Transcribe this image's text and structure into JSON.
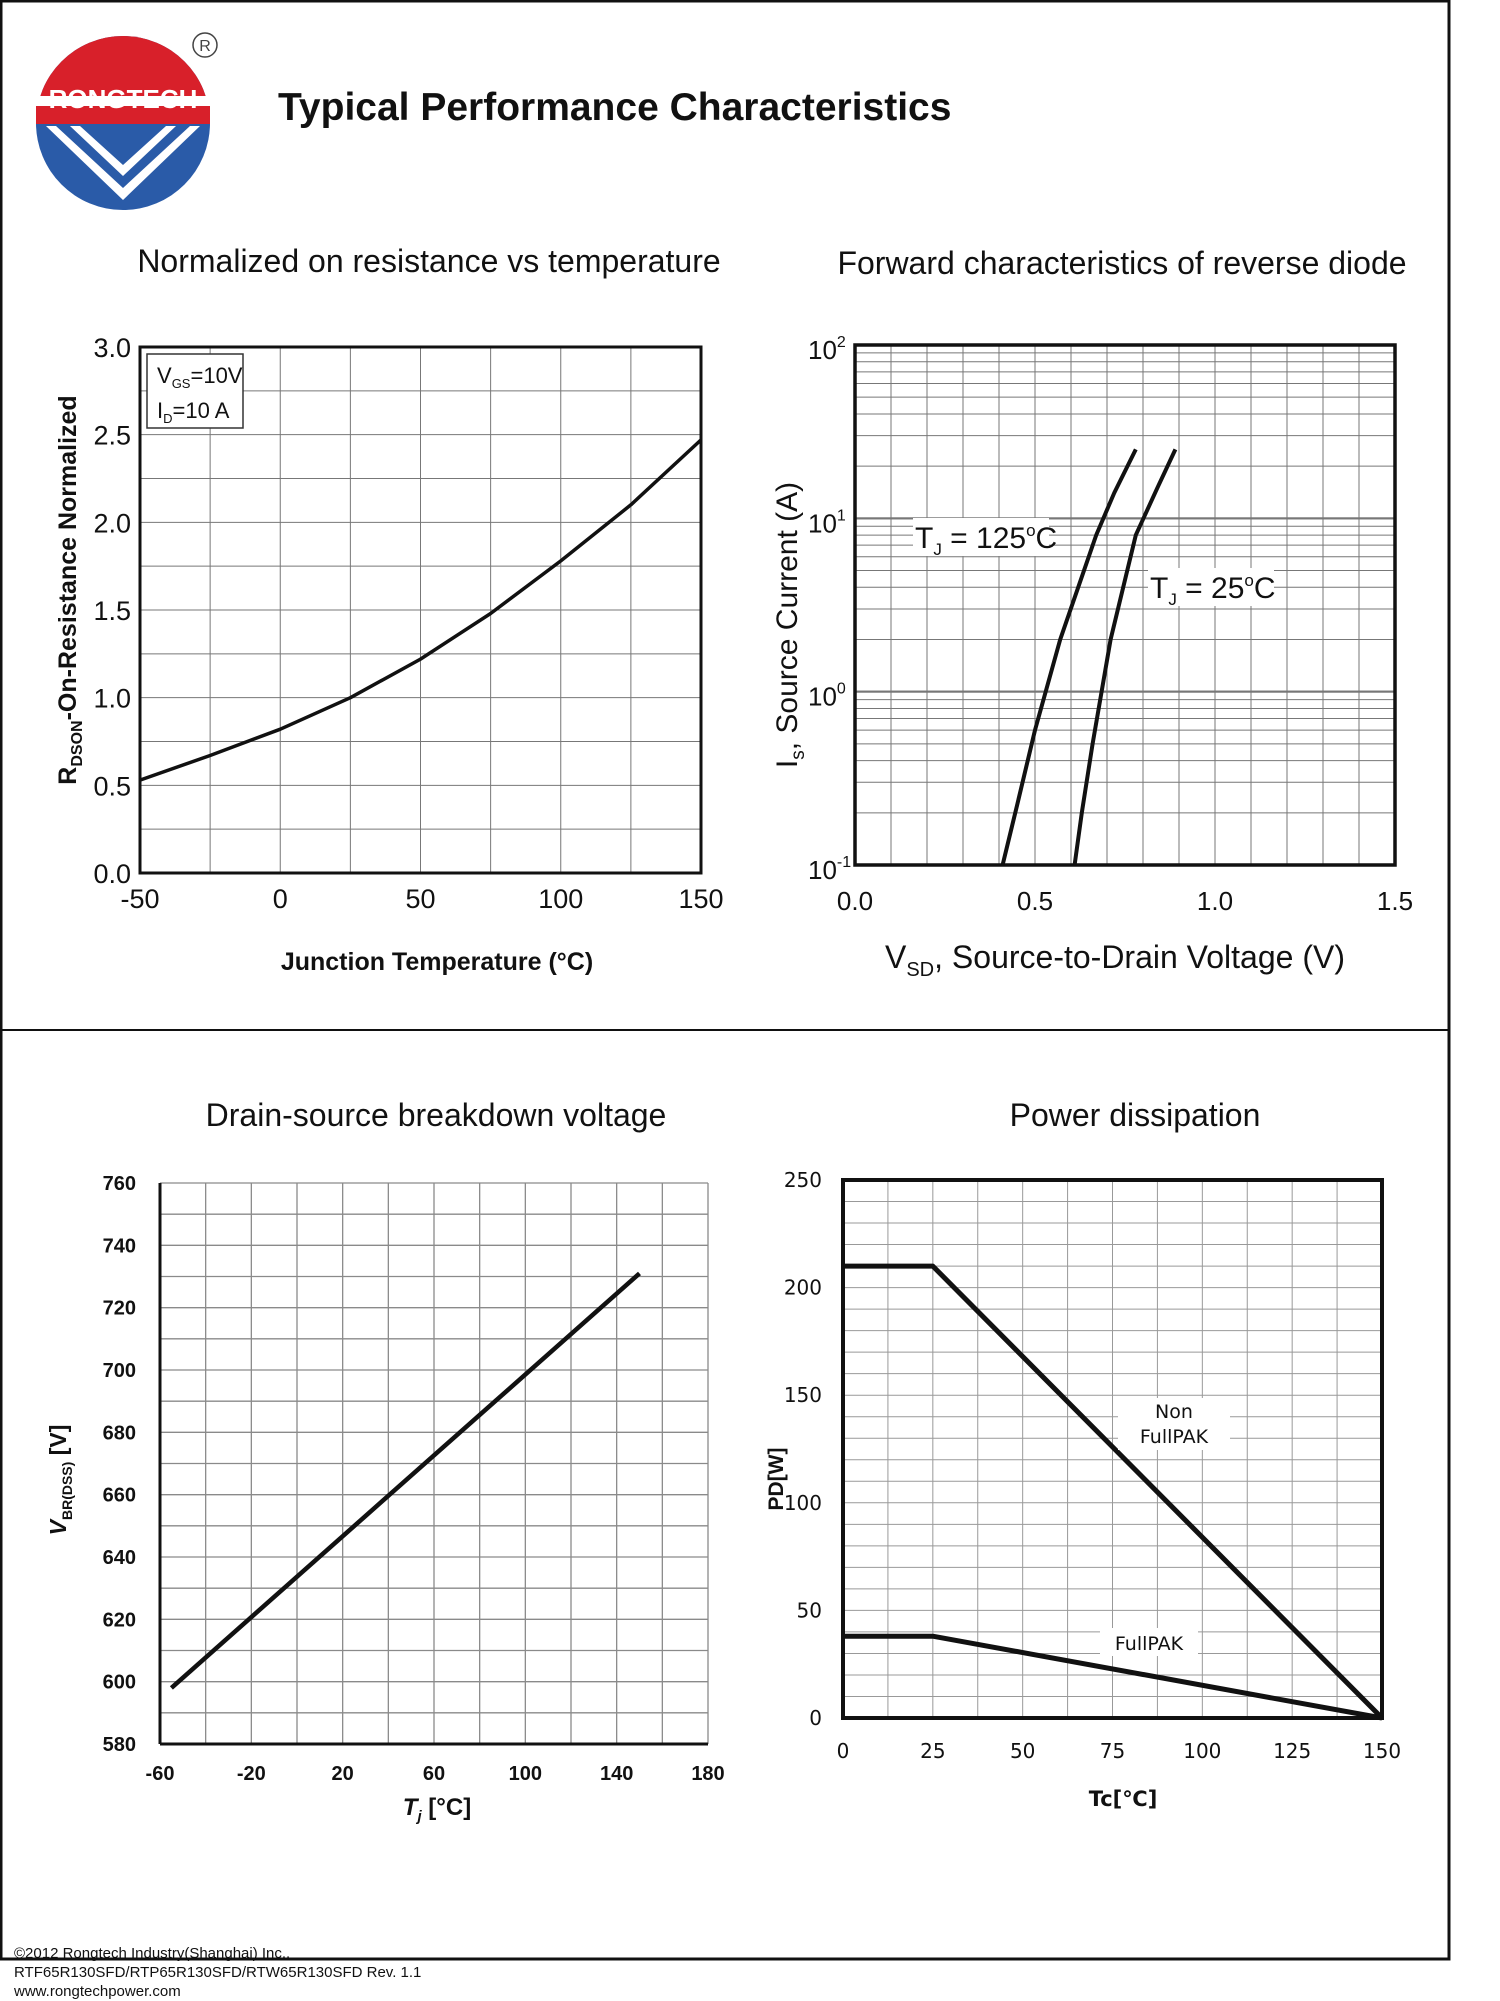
{
  "header": {
    "brand": "RONGTECH",
    "registered_mark": "R",
    "title": "Typical Performance Characteristics"
  },
  "colors": {
    "logo_red": "#d8202a",
    "logo_blue": "#2a5ba8",
    "line": "#111111",
    "grid": "#777777"
  },
  "chart_data": [
    {
      "type": "line",
      "title": "Normalized on resistance vs temperature",
      "xlabel": "Junction Temperature (°C)",
      "ylabel": "RDSON-On-Resistance Normalized",
      "ylabel_main": "R",
      "ylabel_sub": "DSON",
      "ylabel_rest": "-On-Resistance Normalized",
      "xlim": [
        -50,
        150
      ],
      "ylim": [
        0,
        3
      ],
      "xticks": [
        "-50",
        "0",
        "50",
        "100",
        "150"
      ],
      "yticks": [
        "0.0",
        "0.5",
        "1.0",
        "1.5",
        "2.0",
        "2.5",
        "3.0"
      ],
      "grid": true,
      "legend": {
        "line1_main": "V",
        "line1_sub": "GS",
        "line1_rest": "=10V",
        "line2_main": "I",
        "line2_sub": "D",
        "line2_rest": "=10 A"
      },
      "series": [
        {
          "x": [
            -50,
            -25,
            0,
            25,
            50,
            75,
            100,
            125,
            150
          ],
          "values": [
            0.53,
            0.67,
            0.82,
            1.0,
            1.22,
            1.48,
            1.78,
            2.1,
            2.47
          ]
        }
      ]
    },
    {
      "type": "line",
      "title": "Forward characteristics of reverse diode",
      "xlabel_main": "V",
      "xlabel_sub": "SD",
      "xlabel_rest": ", Source-to-Drain Voltage (V)",
      "ylabel_main": "I",
      "ylabel_sub": "s",
      "ylabel_rest": ", Source Current (A)",
      "xlim": [
        0,
        1.5
      ],
      "ylim": [
        0.1,
        100
      ],
      "yscale": "log",
      "xticks": [
        "0.0",
        "0.5",
        "1.0",
        "1.5"
      ],
      "yticks": [
        {
          "base": "10",
          "exp": "-1"
        },
        {
          "base": "10",
          "exp": "0"
        },
        {
          "base": "10",
          "exp": "1"
        },
        {
          "base": "10",
          "exp": "2"
        }
      ],
      "grid": true,
      "series": [
        {
          "label": "T",
          "label_sub": "J",
          "label_rest": " = 125",
          "label_sup": "o",
          "label_end": "C",
          "x": [
            0.41,
            0.45,
            0.5,
            0.57,
            0.67,
            0.72,
            0.78
          ],
          "values": [
            0.1,
            0.22,
            0.6,
            2.0,
            8.0,
            14.0,
            25.0
          ]
        },
        {
          "label": "T",
          "label_sub": "J",
          "label_rest": " = 25",
          "label_sup": "o",
          "label_end": "C",
          "x": [
            0.61,
            0.63,
            0.66,
            0.71,
            0.78,
            0.84,
            0.89
          ],
          "values": [
            0.1,
            0.2,
            0.5,
            2.0,
            8.0,
            15.0,
            25.0
          ]
        }
      ]
    },
    {
      "type": "line",
      "title": "Drain-source breakdown voltage",
      "xlabel_main": "T",
      "xlabel_sub": "j",
      "xlabel_rest": " [°C]",
      "ylabel_main": "V",
      "ylabel_sub": "BR(DSS)",
      "ylabel_rest": " [V]",
      "xlim": [
        -60,
        180
      ],
      "ylim": [
        580,
        760
      ],
      "xticks": [
        "-60",
        "-20",
        "20",
        "60",
        "100",
        "140",
        "180"
      ],
      "yticks": [
        "580",
        "600",
        "620",
        "640",
        "660",
        "680",
        "700",
        "720",
        "740",
        "760"
      ],
      "grid": true,
      "series": [
        {
          "x": [
            -55,
            150
          ],
          "values": [
            598,
            731
          ]
        }
      ]
    },
    {
      "type": "line",
      "title": "Power dissipation",
      "xlabel": "Tc[℃]",
      "ylabel": "PD[W]",
      "xlim": [
        0,
        150
      ],
      "ylim": [
        0,
        250
      ],
      "xticks": [
        "0",
        "25",
        "50",
        "75",
        "100",
        "125",
        "150"
      ],
      "yticks": [
        "0",
        "50",
        "100",
        "150",
        "200",
        "250"
      ],
      "grid": true,
      "series": [
        {
          "name_line1": "Non",
          "name_line2": "FullPAK",
          "x": [
            0,
            25,
            150
          ],
          "values": [
            210,
            210,
            0
          ]
        },
        {
          "name": "FullPAK",
          "x": [
            0,
            25,
            150
          ],
          "values": [
            38,
            38,
            0
          ]
        }
      ]
    }
  ],
  "footer": {
    "copyright": "©2012 Rongtech Industry(Shanghai) Inc,.",
    "part_numbers": "RTF65R130SFD/RTP65R130SFD/RTW65R130SFD Rev. 1.1",
    "website": "www.rongtechpower.com"
  }
}
